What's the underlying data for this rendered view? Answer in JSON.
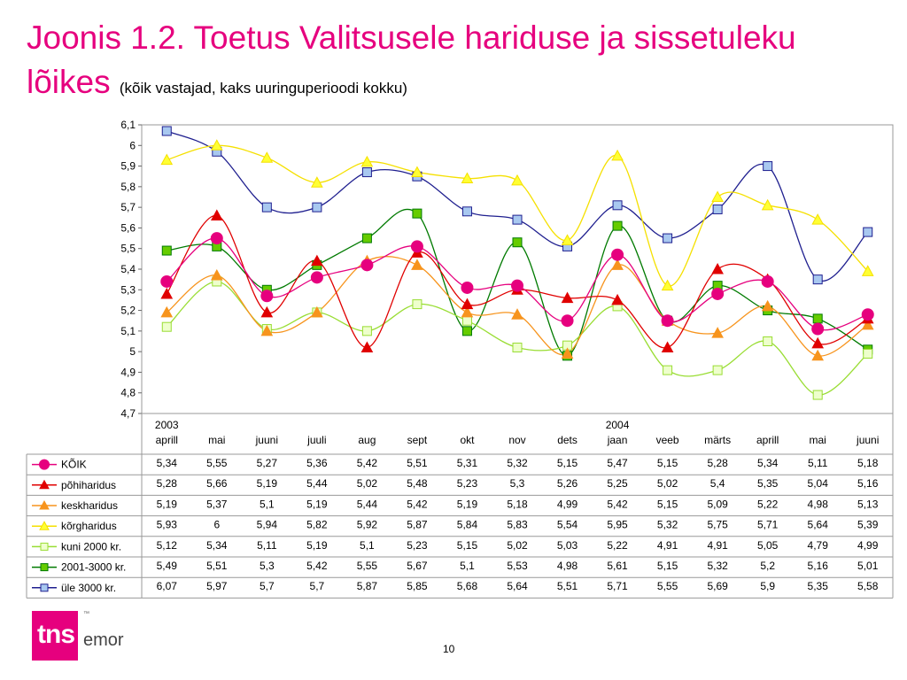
{
  "title": "Joonis 1.2. Toetus Valitsusele hariduse ja sissetuleku",
  "title_line2": "lõikes",
  "subtitle": "(kõik vastajad, kaks uuringuperioodi kokku)",
  "page_number": "10",
  "logo": {
    "brand": "tns",
    "name": "emor",
    "tm": "™"
  },
  "chart_data": {
    "type": "line",
    "title": "",
    "xlabel": "",
    "ylabel": "",
    "ylim": [
      4.7,
      6.1
    ],
    "yticks": [
      "6,1",
      "6",
      "5,9",
      "5,8",
      "5,7",
      "5,6",
      "5,5",
      "5,4",
      "5,3",
      "5,2",
      "5,1",
      "5",
      "4,9",
      "4,8",
      "4,7"
    ],
    "years": [
      {
        "label": "2003",
        "index": 0
      },
      {
        "label": "2004",
        "index": 9
      }
    ],
    "categories": [
      "aprill",
      "mai",
      "juuni",
      "juuli",
      "aug",
      "sept",
      "okt",
      "nov",
      "dets",
      "jaan",
      "veeb",
      "märts",
      "aprill",
      "mai",
      "juuni"
    ],
    "grid": false,
    "legend": "table-left",
    "series": [
      {
        "name": "KÕIK",
        "marker": "circle",
        "color": "#e6007e",
        "fill": "#e6007e",
        "values": [
          5.34,
          5.55,
          5.27,
          5.36,
          5.42,
          5.51,
          5.31,
          5.32,
          5.15,
          5.47,
          5.15,
          5.28,
          5.34,
          5.11,
          5.18
        ],
        "labels": [
          "5,34",
          "5,55",
          "5,27",
          "5,36",
          "5,42",
          "5,51",
          "5,31",
          "5,32",
          "5,15",
          "5,47",
          "5,15",
          "5,28",
          "5,34",
          "5,11",
          "5,18"
        ]
      },
      {
        "name": "põhiharidus",
        "marker": "triangle",
        "color": "#e00000",
        "fill": "#e00000",
        "values": [
          5.28,
          5.66,
          5.19,
          5.44,
          5.02,
          5.48,
          5.23,
          5.3,
          5.26,
          5.25,
          5.02,
          5.4,
          5.35,
          5.04,
          5.16
        ],
        "labels": [
          "5,28",
          "5,66",
          "5,19",
          "5,44",
          "5,02",
          "5,48",
          "5,23",
          "5,3",
          "5,26",
          "5,25",
          "5,02",
          "5,4",
          "5,35",
          "5,04",
          "5,16"
        ]
      },
      {
        "name": "keskharidus",
        "marker": "triangle",
        "color": "#f7941d",
        "fill": "#f7941d",
        "values": [
          5.19,
          5.37,
          5.1,
          5.19,
          5.44,
          5.42,
          5.19,
          5.18,
          4.99,
          5.42,
          5.15,
          5.09,
          5.22,
          4.98,
          5.13
        ],
        "labels": [
          "5,19",
          "5,37",
          "5,1",
          "5,19",
          "5,44",
          "5,42",
          "5,19",
          "5,18",
          "4,99",
          "5,42",
          "5,15",
          "5,09",
          "5,22",
          "4,98",
          "5,13"
        ]
      },
      {
        "name": "kõrgharidus",
        "marker": "triangle",
        "color": "#f5e000",
        "fill": "#ffff33",
        "values": [
          5.93,
          6,
          5.94,
          5.82,
          5.92,
          5.87,
          5.84,
          5.83,
          5.54,
          5.95,
          5.32,
          5.75,
          5.71,
          5.64,
          5.39
        ],
        "labels": [
          "5,93",
          "6",
          "5,94",
          "5,82",
          "5,92",
          "5,87",
          "5,84",
          "5,83",
          "5,54",
          "5,95",
          "5,32",
          "5,75",
          "5,71",
          "5,64",
          "5,39"
        ]
      },
      {
        "name": "kuni 2000 kr.",
        "marker": "square",
        "color": "#99dd33",
        "fill": "#eeffcc",
        "values": [
          5.12,
          5.34,
          5.11,
          5.19,
          5.1,
          5.23,
          5.15,
          5.02,
          5.03,
          5.22,
          4.91,
          4.91,
          5.05,
          4.79,
          4.99
        ],
        "labels": [
          "5,12",
          "5,34",
          "5,11",
          "5,19",
          "5,1",
          "5,23",
          "5,15",
          "5,02",
          "5,03",
          "5,22",
          "4,91",
          "4,91",
          "5,05",
          "4,79",
          "4,99"
        ]
      },
      {
        "name": "2001-3000 kr.",
        "marker": "square",
        "color": "#007a00",
        "fill": "#66cc00",
        "values": [
          5.49,
          5.51,
          5.3,
          5.42,
          5.55,
          5.67,
          5.1,
          5.53,
          4.98,
          5.61,
          5.15,
          5.32,
          5.2,
          5.16,
          5.01
        ],
        "labels": [
          "5,49",
          "5,51",
          "5,3",
          "5,42",
          "5,55",
          "5,67",
          "5,1",
          "5,53",
          "4,98",
          "5,61",
          "5,15",
          "5,32",
          "5,2",
          "5,16",
          "5,01"
        ]
      },
      {
        "name": "üle 3000 kr.",
        "marker": "square",
        "color": "#1f1f8f",
        "fill": "#a8c8f0",
        "values": [
          6.07,
          5.97,
          5.7,
          5.7,
          5.87,
          5.85,
          5.68,
          5.64,
          5.51,
          5.71,
          5.55,
          5.69,
          5.9,
          5.35,
          5.58
        ],
        "labels": [
          "6,07",
          "5,97",
          "5,7",
          "5,7",
          "5,87",
          "5,85",
          "5,68",
          "5,64",
          "5,51",
          "5,71",
          "5,55",
          "5,69",
          "5,9",
          "5,35",
          "5,58"
        ]
      }
    ]
  }
}
